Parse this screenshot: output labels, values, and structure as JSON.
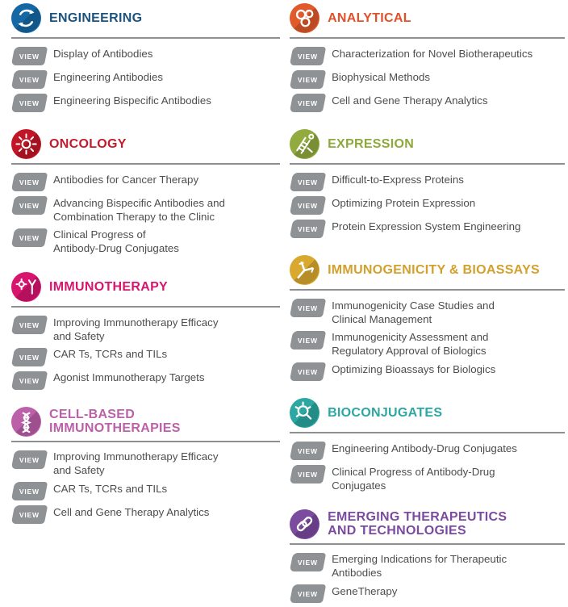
{
  "page": {
    "background": "#ffffff",
    "divider_color": "#8d8f92",
    "item_text_color": "#4b4d4f"
  },
  "view_button": {
    "label": "VIEW",
    "background": "#8f9294",
    "text_color": "#ffffff"
  },
  "columns": [
    {
      "sections": [
        {
          "title": "ENGINEERING",
          "title_color": "#1b5380",
          "icon": "cycle-arrows-icon",
          "icon_color": "#1568a4",
          "items": [
            "Display of Antibodies",
            "Engineering Antibodies",
            "Engineering Bispecific Antibodies"
          ]
        },
        {
          "title": "ONCOLOGY",
          "title_color": "#c21b2c",
          "icon": "cancer-cell-icon",
          "icon_color": "#c11626",
          "items": [
            "Antibodies for Cancer Therapy",
            "Advancing Bispecific Antibodies and\nCombination Therapy to the Clinic",
            "Clinical Progress of\nAntibody-Drug Conjugates"
          ]
        },
        {
          "title": "IMMUNOTHERAPY",
          "title_color": "#d8146f",
          "icon": "antibody-virus-icon",
          "icon_color": "#d8146f",
          "items": [
            "Improving Immunotherapy Efficacy\nand Safety",
            "CAR Ts, TCRs and TILs",
            "Agonist Immunotherapy Targets"
          ]
        },
        {
          "title": "CELL-BASED\nIMMUNOTHERAPIES",
          "title_color": "#bc60a9",
          "icon": "dna-helix-icon",
          "icon_color": "#bc60a9",
          "items": [
            "Improving Immunotherapy Efficacy\nand Safety",
            "CAR Ts, TCRs and TILs",
            "Cell and Gene Therapy Analytics"
          ]
        }
      ]
    },
    {
      "sections": [
        {
          "title": "ANALYTICAL",
          "title_color": "#e2502a",
          "icon": "molecule-cluster-icon",
          "icon_color": "#e05a2b",
          "items": [
            "Characterization for Novel Biotherapeutics",
            "Biophysical Methods",
            "Cell and Gene Therapy Analytics"
          ]
        },
        {
          "title": "EXPRESSION",
          "title_color": "#8ea83b",
          "icon": "dna-transcription-icon",
          "icon_color": "#92ab3e",
          "items": [
            "Difficult-to-Express Proteins",
            "Optimizing Protein Expression",
            "Protein Expression System Engineering"
          ]
        },
        {
          "title": "IMMUNOGENICITY & BIOASSAYS",
          "title_color": "#d3a02c",
          "icon": "antibody-y-icon",
          "icon_color": "#d9a82e",
          "items": [
            "Immunogenicity Case Studies and\nClinical Management",
            "Immunogenicity Assessment and\nRegulatory Approval of Biologics",
            "Optimizing Bioassays for Biologics"
          ]
        },
        {
          "title": "BIOCONJUGATES",
          "title_color": "#2ca7a1",
          "icon": "conjugate-molecule-icon",
          "icon_color": "#2ca7a1",
          "items": [
            "Engineering Antibody-Drug Conjugates",
            "Clinical Progress of Antibody-Drug\nConjugates"
          ]
        },
        {
          "title": "EMERGING THERAPEUTICS\nAND TECHNOLOGIES",
          "title_color": "#7b4b9f",
          "icon": "chain-link-icon",
          "icon_color": "#7b4b9f",
          "items": [
            "Emerging Indications for Therapeutic\nAntibodies",
            "GeneTherapy"
          ]
        }
      ]
    }
  ]
}
